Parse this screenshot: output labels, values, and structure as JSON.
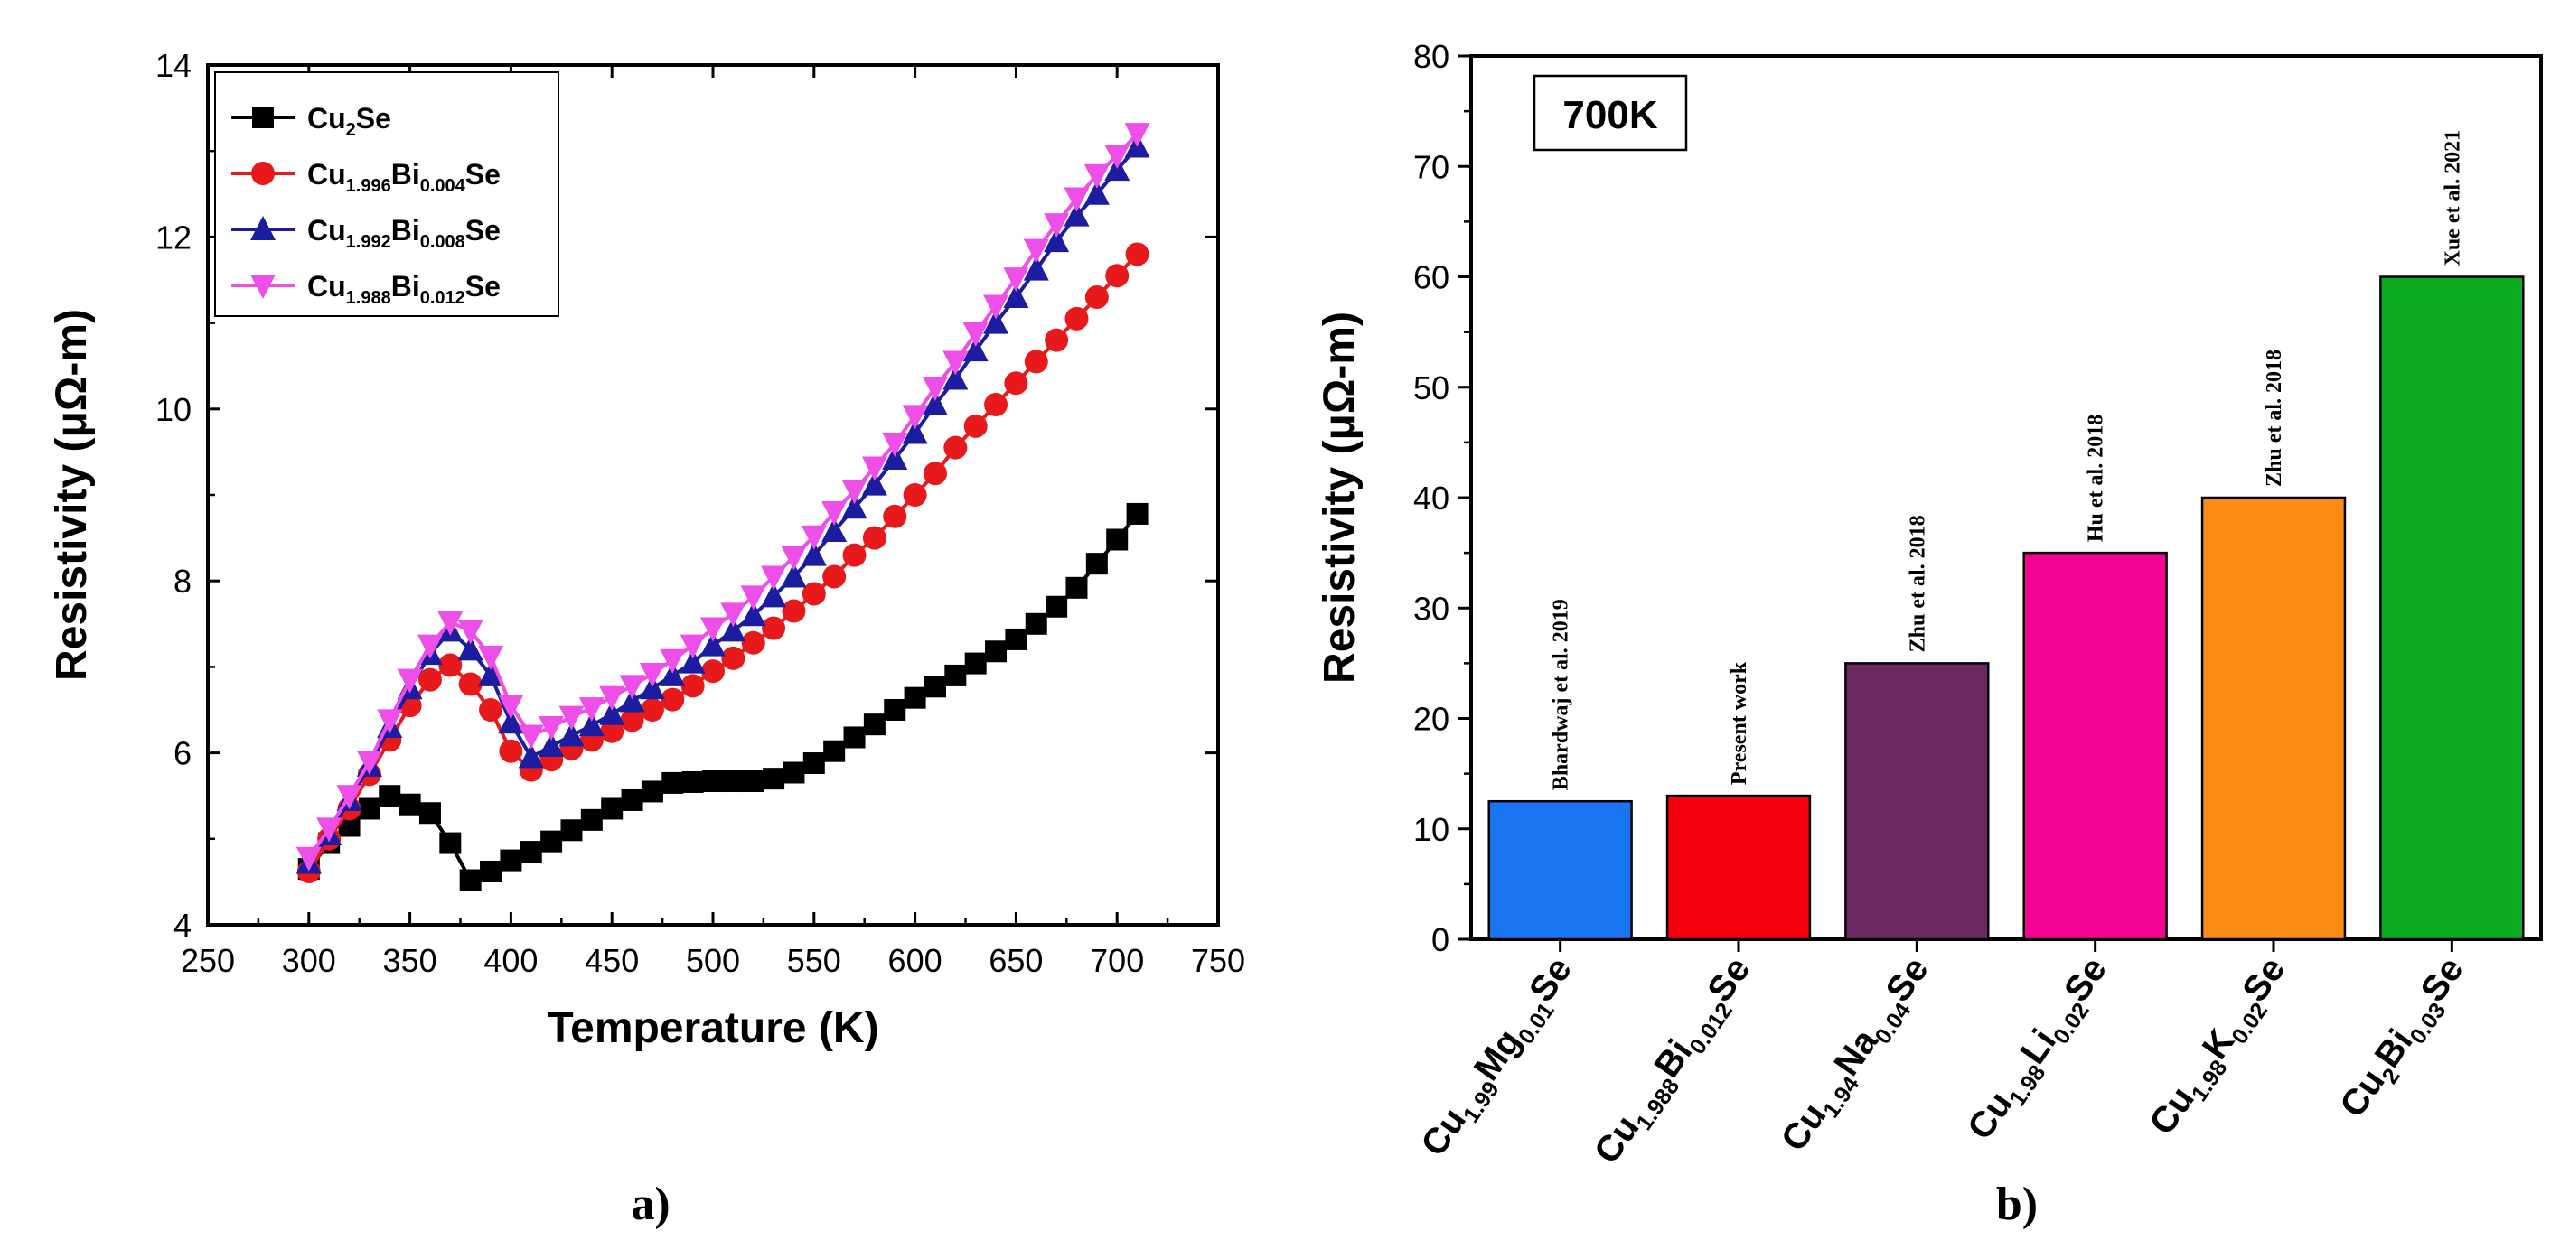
{
  "chart_data": [
    {
      "type": "line",
      "xlabel": "Temperature (K)",
      "ylabel": "Resistivity (μΩ-m)",
      "xlim": [
        250,
        750
      ],
      "ylim": [
        4,
        14
      ],
      "xticks": [
        250,
        300,
        350,
        400,
        450,
        500,
        550,
        600,
        650,
        700,
        750
      ],
      "yticks": [
        4,
        6,
        8,
        10,
        12,
        14
      ],
      "panel_label": "a)",
      "legend_position": "top-left",
      "x": [
        300,
        310,
        320,
        330,
        340,
        350,
        360,
        370,
        380,
        390,
        400,
        410,
        420,
        430,
        440,
        450,
        460,
        470,
        480,
        490,
        500,
        510,
        520,
        530,
        540,
        550,
        560,
        570,
        580,
        590,
        600,
        610,
        620,
        630,
        640,
        650,
        660,
        670,
        680,
        690,
        700,
        710
      ],
      "series": [
        {
          "name": "Cu2Se",
          "label_parts": [
            {
              "t": "Cu"
            },
            {
              "t": "2",
              "sub": true
            },
            {
              "t": "Se"
            }
          ],
          "color": "#000000",
          "marker": "square",
          "values": [
            4.65,
            4.95,
            5.15,
            5.35,
            5.5,
            5.4,
            5.3,
            4.95,
            4.52,
            4.62,
            4.75,
            4.85,
            4.97,
            5.1,
            5.22,
            5.35,
            5.45,
            5.55,
            5.65,
            5.66,
            5.67,
            5.67,
            5.67,
            5.7,
            5.77,
            5.88,
            6.02,
            6.18,
            6.33,
            6.5,
            6.64,
            6.77,
            6.9,
            7.04,
            7.18,
            7.32,
            7.5,
            7.7,
            7.92,
            8.2,
            8.48,
            8.78
          ]
        },
        {
          "name": "Cu1.996Bi0.004Se",
          "label_parts": [
            {
              "t": "Cu"
            },
            {
              "t": "1.996",
              "sub": true
            },
            {
              "t": "Bi"
            },
            {
              "t": "0.004",
              "sub": true
            },
            {
              "t": "Se"
            }
          ],
          "color": "#e8191b",
          "marker": "circle",
          "values": [
            4.62,
            5.0,
            5.35,
            5.75,
            6.15,
            6.55,
            6.85,
            7.02,
            6.8,
            6.5,
            6.02,
            5.8,
            5.92,
            6.05,
            6.15,
            6.25,
            6.38,
            6.5,
            6.62,
            6.78,
            6.95,
            7.1,
            7.28,
            7.45,
            7.65,
            7.85,
            8.05,
            8.3,
            8.5,
            8.75,
            9.0,
            9.25,
            9.55,
            9.8,
            10.05,
            10.3,
            10.55,
            10.8,
            11.05,
            11.3,
            11.55,
            11.8
          ]
        },
        {
          "name": "Cu1.992Bi0.008Se",
          "label_parts": [
            {
              "t": "Cu"
            },
            {
              "t": "1.992",
              "sub": true
            },
            {
              "t": "Bi"
            },
            {
              "t": "0.008",
              "sub": true
            },
            {
              "t": "Se"
            }
          ],
          "color": "#1c1ca0",
          "marker": "triangle-up",
          "values": [
            4.72,
            5.05,
            5.45,
            5.85,
            6.3,
            6.75,
            7.15,
            7.42,
            7.2,
            6.9,
            6.35,
            5.95,
            6.08,
            6.2,
            6.32,
            6.45,
            6.6,
            6.75,
            6.9,
            7.05,
            7.25,
            7.42,
            7.6,
            7.82,
            8.05,
            8.3,
            8.58,
            8.85,
            9.12,
            9.42,
            9.72,
            10.05,
            10.35,
            10.68,
            11.0,
            11.3,
            11.62,
            11.95,
            12.25,
            12.5,
            12.78,
            13.05
          ]
        },
        {
          "name": "Cu1.988Bi0.012Se",
          "label_parts": [
            {
              "t": "Cu"
            },
            {
              "t": "1.988",
              "sub": true
            },
            {
              "t": "Bi"
            },
            {
              "t": "0.012",
              "sub": true
            },
            {
              "t": "Se"
            }
          ],
          "color": "#ee4fe8",
          "marker": "triangle-down",
          "values": [
            4.78,
            5.12,
            5.5,
            5.9,
            6.38,
            6.85,
            7.25,
            7.52,
            7.42,
            7.12,
            6.55,
            6.2,
            6.3,
            6.42,
            6.52,
            6.65,
            6.78,
            6.92,
            7.08,
            7.25,
            7.45,
            7.62,
            7.82,
            8.05,
            8.28,
            8.52,
            8.8,
            9.05,
            9.32,
            9.6,
            9.92,
            10.25,
            10.55,
            10.88,
            11.2,
            11.52,
            11.85,
            12.15,
            12.45,
            12.72,
            12.95,
            13.2
          ]
        }
      ]
    },
    {
      "type": "bar",
      "ylabel": "Resistivity (μΩ-m)",
      "ylim": [
        0,
        80
      ],
      "yticks": [
        0,
        10,
        20,
        30,
        40,
        50,
        60,
        70,
        80
      ],
      "annotation": "700K",
      "panel_label": "b)",
      "categories": [
        "Cu1.99Mg0.01Se",
        "Cu1.988Bi0.012Se",
        "Cu1.94Na0.04Se",
        "Cu1.98Li0.02Se",
        "Cu1.98K0.02Se",
        "Cu2Bi0.03Se"
      ],
      "category_parts": [
        [
          {
            "t": "Cu"
          },
          {
            "t": "1.99",
            "sub": true
          },
          {
            "t": "Mg"
          },
          {
            "t": "0.01",
            "sub": true
          },
          {
            "t": "Se"
          }
        ],
        [
          {
            "t": "Cu"
          },
          {
            "t": "1.988",
            "sub": true
          },
          {
            "t": "Bi"
          },
          {
            "t": "0.012",
            "sub": true
          },
          {
            "t": "Se"
          }
        ],
        [
          {
            "t": "Cu"
          },
          {
            "t": "1.94",
            "sub": true
          },
          {
            "t": "Na"
          },
          {
            "t": "0.04",
            "sub": true
          },
          {
            "t": "Se"
          }
        ],
        [
          {
            "t": "Cu"
          },
          {
            "t": "1.98",
            "sub": true
          },
          {
            "t": "Li"
          },
          {
            "t": "0.02",
            "sub": true
          },
          {
            "t": "Se"
          }
        ],
        [
          {
            "t": "Cu"
          },
          {
            "t": "1.98",
            "sub": true
          },
          {
            "t": "K"
          },
          {
            "t": "0.02",
            "sub": true
          },
          {
            "t": "Se"
          }
        ],
        [
          {
            "t": "Cu"
          },
          {
            "t": "2",
            "sub": true
          },
          {
            "t": "Bi"
          },
          {
            "t": "0.03",
            "sub": true
          },
          {
            "t": "Se"
          }
        ]
      ],
      "values": [
        12.5,
        13,
        25,
        35,
        40,
        60
      ],
      "bar_labels": [
        "Bhardwaj et al. 2019",
        "Present work",
        "Zhu et al. 2018",
        "Hu et al. 2018",
        "Zhu et al. 2018",
        "Xue et al. 2021"
      ],
      "colors": [
        "#1976f0",
        "#f5000c",
        "#6c2a63",
        "#f50493",
        "#fb8b14",
        "#0bab22"
      ]
    }
  ]
}
